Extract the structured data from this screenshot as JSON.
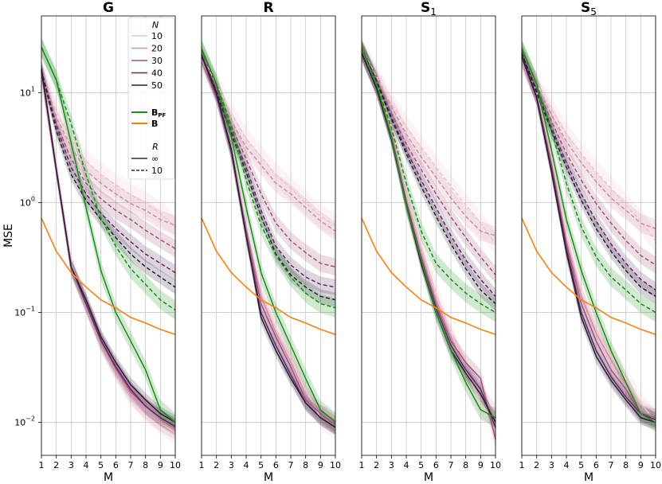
{
  "chart_data": {
    "type": "line",
    "ylabel": "MSE",
    "xlabel": "M",
    "yscale": "log",
    "ylim": [
      0.005,
      50
    ],
    "xlim": [
      1,
      10
    ],
    "x": [
      1,
      2,
      3,
      4,
      5,
      6,
      7,
      8,
      9,
      10
    ],
    "yticks": [
      {
        "value": 10,
        "base": "10",
        "exp": "1"
      },
      {
        "value": 1,
        "base": "10",
        "exp": "0"
      },
      {
        "value": 0.1,
        "base": "10",
        "exp": "−1"
      },
      {
        "value": 0.01,
        "base": "10",
        "exp": "−2"
      }
    ],
    "colors": {
      "N10": "#eec4cb",
      "N20": "#cf8fa3",
      "N30": "#a2537d",
      "N40": "#5e2d5e",
      "N50": "#2b1d35",
      "bpf": "#1a8c1a",
      "b": "#ff7f0e"
    },
    "legend": {
      "n_title": "N",
      "n_entries": [
        "10",
        "20",
        "30",
        "40",
        "50"
      ],
      "bpf_label": "B",
      "bpf_sub": "PF",
      "b_label": "B",
      "r_title": "R",
      "r_entries": [
        "∞",
        "10"
      ]
    },
    "panels": [
      {
        "title": "G",
        "title_sub": "",
        "series": [
          {
            "name": "N=10, R=∞",
            "key": "N10",
            "dash": false,
            "values": [
              14,
              2.2,
              0.27,
              0.12,
              0.055,
              0.03,
              0.018,
              0.013,
              0.01,
              0.008
            ]
          },
          {
            "name": "N=20, R=∞",
            "key": "N20",
            "dash": false,
            "values": [
              15,
              2.0,
              0.26,
              0.12,
              0.054,
              0.03,
              0.018,
              0.013,
              0.01,
              0.0085
            ]
          },
          {
            "name": "N=30, R=∞",
            "key": "N30",
            "dash": false,
            "values": [
              15.5,
              2.0,
              0.26,
              0.12,
              0.055,
              0.031,
              0.019,
              0.014,
              0.011,
              0.009
            ]
          },
          {
            "name": "N=40, R=∞",
            "key": "N40",
            "dash": false,
            "values": [
              16,
              2.0,
              0.26,
              0.12,
              0.056,
              0.032,
              0.02,
              0.014,
              0.011,
              0.0092
            ]
          },
          {
            "name": "N=50, R=∞",
            "key": "N50",
            "dash": false,
            "values": [
              16.5,
              2.0,
              0.26,
              0.13,
              0.06,
              0.035,
              0.022,
              0.016,
              0.012,
              0.01
            ]
          },
          {
            "name": "N=10, R=10",
            "key": "N10",
            "dash": true,
            "values": [
              16,
              6.5,
              3.8,
              2.4,
              1.8,
              1.45,
              1.18,
              0.98,
              0.8,
              0.6
            ]
          },
          {
            "name": "N=20, R=10",
            "key": "N20",
            "dash": true,
            "values": [
              16,
              6.0,
              3.2,
              1.95,
              1.5,
              1.2,
              0.98,
              0.85,
              0.7,
              0.62
            ]
          },
          {
            "name": "N=30, R=10",
            "key": "N30",
            "dash": true,
            "values": [
              16,
              5.2,
              2.5,
              1.5,
              1.08,
              0.85,
              0.7,
              0.56,
              0.46,
              0.38
            ]
          },
          {
            "name": "N=40, R=10",
            "key": "N40",
            "dash": true,
            "values": [
              16,
              5.0,
              2.1,
              1.2,
              0.8,
              0.58,
              0.44,
              0.34,
              0.28,
              0.23
            ]
          },
          {
            "name": "N=50, R=10",
            "key": "N50",
            "dash": true,
            "values": [
              16,
              4.5,
              1.8,
              1.05,
              0.7,
              0.48,
              0.34,
              0.26,
              0.21,
              0.17
            ]
          },
          {
            "name": "B_PF, R=∞",
            "key": "bpf",
            "dash": false,
            "values": [
              26,
              13,
              3.5,
              0.9,
              0.24,
              0.1,
              0.055,
              0.03,
              0.013,
              0.01
            ]
          },
          {
            "name": "B_PF, R=10",
            "key": "bpf",
            "dash": true,
            "values": [
              26,
              13,
              5.2,
              1.8,
              0.72,
              0.4,
              0.25,
              0.18,
              0.13,
              0.105
            ]
          },
          {
            "name": "B",
            "key": "b",
            "dash": false,
            "values": [
              0.72,
              0.36,
              0.23,
              0.17,
              0.13,
              0.11,
              0.09,
              0.08,
              0.07,
              0.063
            ]
          }
        ]
      },
      {
        "title": "R",
        "title_sub": "",
        "series": [
          {
            "name": "N=10, R=∞",
            "key": "N10",
            "dash": false,
            "values": [
              20,
              10,
              3.2,
              0.5,
              0.15,
              0.07,
              0.04,
              0.02,
              0.011,
              0.009
            ]
          },
          {
            "name": "N=20, R=∞",
            "key": "N20",
            "dash": false,
            "values": [
              21,
              10,
              3.0,
              0.6,
              0.14,
              0.065,
              0.035,
              0.018,
              0.012,
              0.01
            ]
          },
          {
            "name": "N=30, R=∞",
            "key": "N30",
            "dash": false,
            "values": [
              21,
              9.5,
              2.9,
              0.55,
              0.12,
              0.06,
              0.032,
              0.016,
              0.012,
              0.0095
            ]
          },
          {
            "name": "N=40, R=∞",
            "key": "N40",
            "dash": false,
            "values": [
              22,
              9.5,
              2.9,
              0.5,
              0.1,
              0.05,
              0.027,
              0.015,
              0.011,
              0.009
            ]
          },
          {
            "name": "N=50, R=∞",
            "key": "N50",
            "dash": false,
            "values": [
              22,
              10,
              3.1,
              0.5,
              0.09,
              0.045,
              0.025,
              0.015,
              0.011,
              0.009
            ]
          },
          {
            "name": "N=10, R=10",
            "key": "N10",
            "dash": true,
            "values": [
              22,
              12,
              6.5,
              3.8,
              2.6,
              1.8,
              1.35,
              1.0,
              0.75,
              0.62
            ]
          },
          {
            "name": "N=20, R=10",
            "key": "N20",
            "dash": true,
            "values": [
              22,
              11,
              5.5,
              3.2,
              2.2,
              1.5,
              1.2,
              0.9,
              0.68,
              0.55
            ]
          },
          {
            "name": "N=30, R=10",
            "key": "N30",
            "dash": true,
            "values": [
              22,
              11,
              5.0,
              2.5,
              1.2,
              0.65,
              0.45,
              0.35,
              0.28,
              0.26
            ]
          },
          {
            "name": "N=40, R=10",
            "key": "N40",
            "dash": true,
            "values": [
              22,
              10.5,
              4.5,
              2.1,
              0.85,
              0.4,
              0.27,
              0.21,
              0.18,
              0.17
            ]
          },
          {
            "name": "N=50, R=10",
            "key": "N50",
            "dash": true,
            "values": [
              22,
              10,
              4.2,
              1.9,
              0.75,
              0.34,
              0.22,
              0.17,
              0.14,
              0.13
            ]
          },
          {
            "name": "B_PF, R=∞",
            "key": "bpf",
            "dash": false,
            "values": [
              25,
              12,
              4.0,
              0.9,
              0.23,
              0.1,
              0.05,
              0.025,
              0.013,
              0.01
            ]
          },
          {
            "name": "B_PF, R=10",
            "key": "bpf",
            "dash": true,
            "values": [
              25,
              12,
              5.0,
              1.6,
              0.62,
              0.33,
              0.21,
              0.15,
              0.12,
              0.11
            ]
          },
          {
            "name": "B",
            "key": "b",
            "dash": false,
            "values": [
              0.72,
              0.36,
              0.23,
              0.17,
              0.13,
              0.11,
              0.09,
              0.08,
              0.07,
              0.063
            ]
          }
        ]
      },
      {
        "title": "S",
        "title_sub": "1",
        "series": [
          {
            "name": "N=10, R=∞",
            "key": "N10",
            "dash": false,
            "values": [
              24,
              12,
              5.0,
              1.2,
              0.4,
              0.15,
              0.065,
              0.03,
              0.015,
              0.01
            ]
          },
          {
            "name": "N=20, R=∞",
            "key": "N20",
            "dash": false,
            "values": [
              24,
              12,
              4.5,
              1.1,
              0.35,
              0.13,
              0.06,
              0.03,
              0.018,
              0.012
            ]
          },
          {
            "name": "N=30, R=∞",
            "key": "N30",
            "dash": false,
            "values": [
              23,
              11,
              4.0,
              1.0,
              0.32,
              0.12,
              0.055,
              0.035,
              0.025,
              0.007
            ]
          },
          {
            "name": "N=40, R=∞",
            "key": "N40",
            "dash": false,
            "values": [
              23,
              11,
              4.0,
              1.0,
              0.3,
              0.11,
              0.05,
              0.03,
              0.02,
              0.009
            ]
          },
          {
            "name": "N=50, R=∞",
            "key": "N50",
            "dash": false,
            "values": [
              23,
              11,
              3.8,
              0.95,
              0.28,
              0.1,
              0.045,
              0.028,
              0.018,
              0.01
            ]
          },
          {
            "name": "N=10, R=10",
            "key": "N10",
            "dash": true,
            "values": [
              25,
              14,
              8.0,
              4.8,
              3.2,
              2.1,
              1.4,
              0.95,
              0.65,
              0.42
            ]
          },
          {
            "name": "N=20, R=10",
            "key": "N20",
            "dash": true,
            "values": [
              25,
              13.5,
              7.5,
              4.2,
              2.6,
              1.7,
              1.1,
              0.75,
              0.55,
              0.5
            ]
          },
          {
            "name": "N=30, R=10",
            "key": "N30",
            "dash": true,
            "values": [
              25,
              13,
              6.5,
              3.4,
              2.0,
              1.2,
              0.74,
              0.48,
              0.32,
              0.22
            ]
          },
          {
            "name": "N=40, R=10",
            "key": "N40",
            "dash": true,
            "values": [
              25,
              13,
              6.0,
              3.0,
              1.6,
              0.9,
              0.5,
              0.3,
              0.2,
              0.14
            ]
          },
          {
            "name": "N=50, R=10",
            "key": "N50",
            "dash": true,
            "values": [
              25,
              12.5,
              5.8,
              2.8,
              1.4,
              0.75,
              0.42,
              0.25,
              0.16,
              0.12
            ]
          },
          {
            "name": "B_PF, R=∞",
            "key": "bpf",
            "dash": false,
            "values": [
              25,
              12,
              4.0,
              0.95,
              0.3,
              0.1,
              0.045,
              0.023,
              0.013,
              0.011
            ]
          },
          {
            "name": "B_PF, R=10",
            "key": "bpf",
            "dash": true,
            "values": [
              25,
              12,
              4.8,
              1.5,
              0.55,
              0.28,
              0.2,
              0.15,
              0.12,
              0.1
            ]
          },
          {
            "name": "B",
            "key": "b",
            "dash": false,
            "values": [
              0.72,
              0.36,
              0.23,
              0.17,
              0.13,
              0.11,
              0.09,
              0.08,
              0.07,
              0.063
            ]
          }
        ]
      },
      {
        "title": "S",
        "title_sub": "5",
        "series": [
          {
            "name": "N=10, R=∞",
            "key": "N10",
            "dash": false,
            "values": [
              20,
              10,
              2.5,
              0.5,
              0.15,
              0.07,
              0.04,
              0.025,
              0.015,
              0.01
            ]
          },
          {
            "name": "N=20, R=∞",
            "key": "N20",
            "dash": false,
            "values": [
              20,
              9.5,
              2.3,
              0.45,
              0.14,
              0.065,
              0.037,
              0.022,
              0.013,
              0.011
            ]
          },
          {
            "name": "N=30, R=∞",
            "key": "N30",
            "dash": false,
            "values": [
              21,
              9.5,
              2.2,
              0.42,
              0.12,
              0.055,
              0.03,
              0.02,
              0.012,
              0.011
            ]
          },
          {
            "name": "N=40, R=∞",
            "key": "N40",
            "dash": false,
            "values": [
              21,
              9.0,
              2.0,
              0.38,
              0.1,
              0.045,
              0.026,
              0.017,
              0.012,
              0.0105
            ]
          },
          {
            "name": "N=50, R=∞",
            "key": "N50",
            "dash": false,
            "values": [
              22,
              9.0,
              1.9,
              0.35,
              0.09,
              0.04,
              0.024,
              0.016,
              0.011,
              0.01
            ]
          },
          {
            "name": "N=10, R=10",
            "key": "N10",
            "dash": true,
            "values": [
              23,
              12,
              7.0,
              4.2,
              2.8,
              1.9,
              1.35,
              0.95,
              0.68,
              0.45
            ]
          },
          {
            "name": "N=20, R=10",
            "key": "N20",
            "dash": true,
            "values": [
              23,
              11.5,
              6.3,
              3.6,
              2.3,
              1.55,
              1.1,
              0.85,
              0.65,
              0.58
            ]
          },
          {
            "name": "N=30, R=10",
            "key": "N30",
            "dash": true,
            "values": [
              23,
              11,
              5.5,
              2.8,
              1.6,
              0.98,
              0.65,
              0.45,
              0.33,
              0.27
            ]
          },
          {
            "name": "N=40, R=10",
            "key": "N40",
            "dash": true,
            "values": [
              23,
              10.5,
              4.8,
              2.3,
              1.2,
              0.68,
              0.42,
              0.28,
              0.2,
              0.16
            ]
          },
          {
            "name": "N=50, R=10",
            "key": "N50",
            "dash": true,
            "values": [
              23,
              10,
              4.5,
              2.1,
              1.05,
              0.58,
              0.36,
              0.24,
              0.17,
              0.14
            ]
          },
          {
            "name": "B_PF, R=∞",
            "key": "bpf",
            "dash": false,
            "values": [
              25,
              12,
              3.0,
              0.7,
              0.24,
              0.1,
              0.045,
              0.023,
              0.012,
              0.01
            ]
          },
          {
            "name": "B_PF, R=10",
            "key": "bpf",
            "dash": true,
            "values": [
              25,
              12,
              4.5,
              1.5,
              0.6,
              0.32,
              0.21,
              0.16,
              0.12,
              0.1
            ]
          },
          {
            "name": "B",
            "key": "b",
            "dash": false,
            "values": [
              0.72,
              0.36,
              0.23,
              0.17,
              0.13,
              0.11,
              0.09,
              0.08,
              0.07,
              0.063
            ]
          }
        ]
      }
    ]
  }
}
